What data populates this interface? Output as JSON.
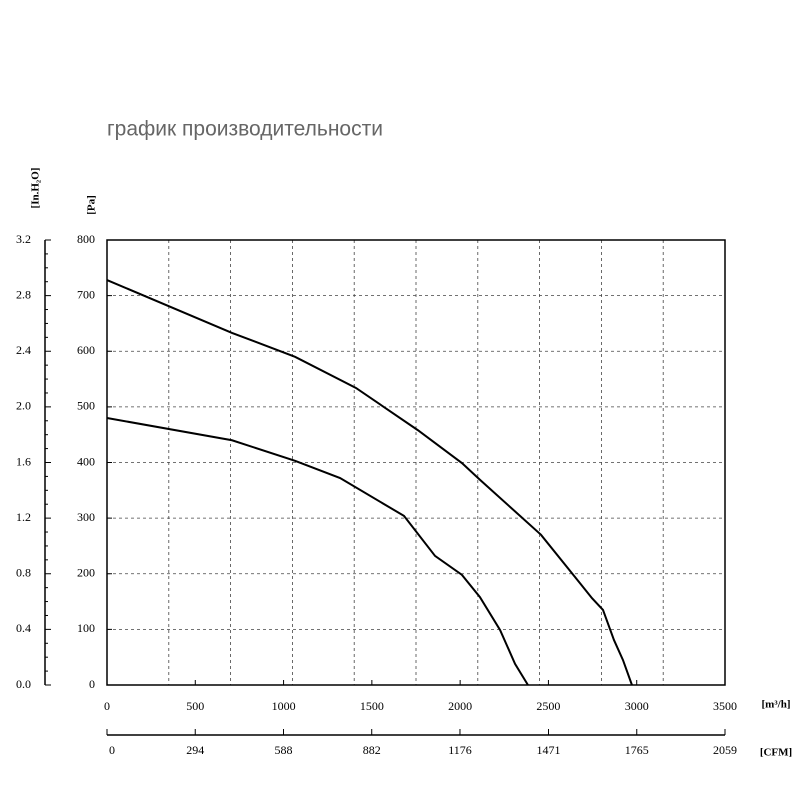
{
  "chart_data": {
    "type": "line",
    "title": "график производительности",
    "x_label": "[m³/h]",
    "x2_label": "[CFM]",
    "y_label": "[Pa]",
    "y2_label": "[In.H₂O]",
    "xlim": [
      0,
      3500
    ],
    "xticks": [
      0,
      500,
      1000,
      1500,
      2000,
      2500,
      3000,
      3500
    ],
    "x2lim": [
      0,
      2059
    ],
    "x2ticks": [
      0,
      294,
      588,
      882,
      1176,
      1471,
      1765,
      2059
    ],
    "ylim": [
      0,
      800
    ],
    "yticks": [
      0,
      100,
      200,
      300,
      400,
      500,
      600,
      700,
      800
    ],
    "y2lim": [
      0,
      3.2
    ],
    "y2ticks": [
      {
        "value": 0,
        "label": "0.0"
      },
      0.4,
      0.8,
      1.2,
      1.6,
      {
        "value": 2,
        "label": "2.0"
      },
      2.4,
      2.8,
      3.2
    ],
    "xgrid": [
      350,
      700,
      1050,
      1400,
      1750,
      2100,
      2450,
      2800,
      3150
    ],
    "grid": true,
    "series": [
      {
        "color": "#000000",
        "x": [
          0,
          708,
          1065,
          1410,
          1761,
          2010,
          2112,
          2458,
          2679,
          2747,
          2809,
          2871,
          2922,
          2973
        ],
        "values": [
          728,
          633,
          590,
          534,
          458,
          399,
          369,
          270,
          183,
          156,
          135,
          81,
          45,
          0
        ]
      },
      {
        "color": "#000000",
        "x": [
          0,
          708,
          1065,
          1320,
          1682,
          1858,
          2010,
          2112,
          2226,
          2311,
          2384
        ],
        "values": [
          480,
          440,
          403,
          372,
          304,
          232,
          198,
          158,
          99,
          38,
          0
        ]
      }
    ]
  }
}
